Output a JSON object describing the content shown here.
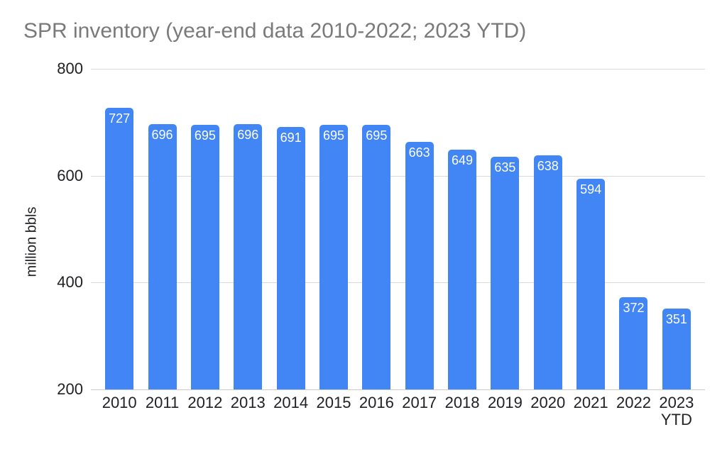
{
  "chart_data": {
    "type": "bar",
    "title": "SPR inventory (year-end data 2010-2022; 2023 YTD)",
    "xlabel": "",
    "ylabel": "million bbls",
    "categories": [
      "2010",
      "2011",
      "2012",
      "2013",
      "2014",
      "2015",
      "2016",
      "2017",
      "2018",
      "2019",
      "2020",
      "2021",
      "2022",
      "2023 YTD"
    ],
    "values": [
      727,
      696,
      695,
      696,
      691,
      695,
      695,
      663,
      649,
      635,
      638,
      594,
      372,
      351
    ],
    "ylim": [
      200,
      800
    ],
    "yticks": [
      200,
      400,
      600,
      800
    ],
    "grid": true,
    "legend": false,
    "bar_value_labels_shown": true,
    "colors": {
      "bar": "#4285f4",
      "bar_label": "#ffffff",
      "title": "#7a7a7a",
      "axis_label": "#202124",
      "gridline": "#d9d9d9",
      "baseline": "#cccccc",
      "background": "#ffffff"
    }
  }
}
